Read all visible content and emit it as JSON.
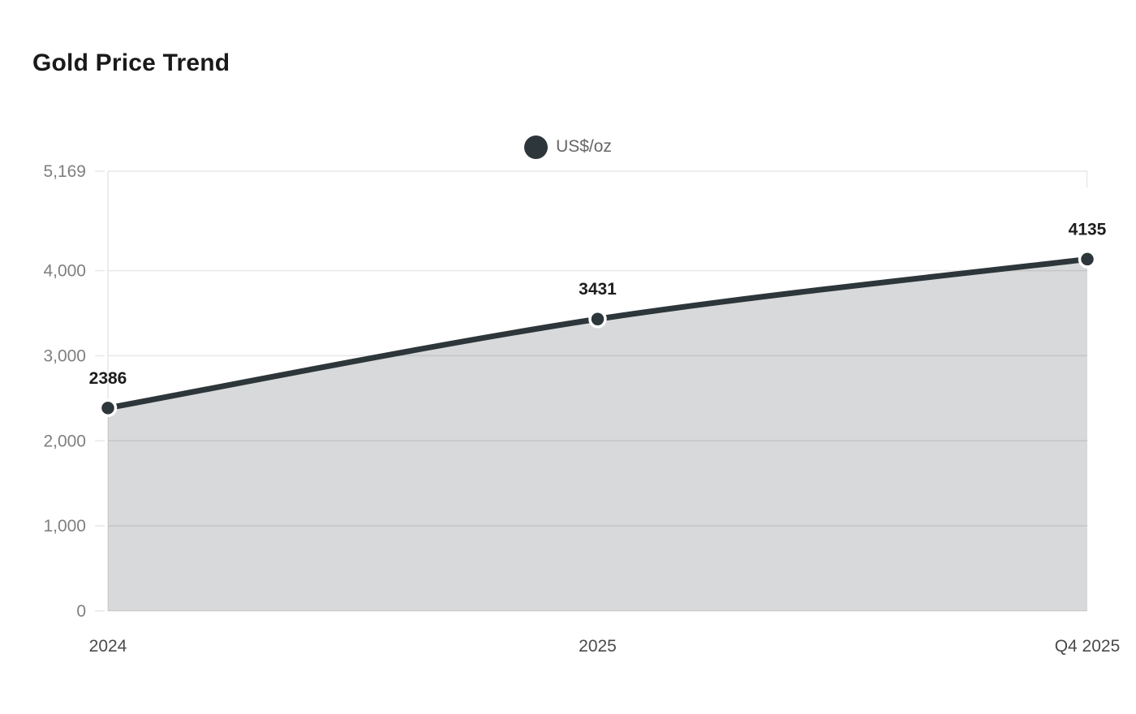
{
  "title": "Gold Price Trend",
  "legend": {
    "label": "US$/oz",
    "position": "top-center"
  },
  "colors": {
    "line": "#2d363a",
    "area_fill": "rgba(45,54,58,0.19)",
    "grid": "#e7e7e7",
    "y_tick_text": "#7f7f7f",
    "x_tick_text": "#4a4a4a",
    "point_label_text": "#1d1d1d",
    "title_text": "#1a1a1a",
    "legend_text": "#666666",
    "marker_ring": "#ffffff",
    "background": "#ffffff"
  },
  "chart_data": {
    "type": "area",
    "title": "Gold Price Trend",
    "categories": [
      "2024",
      "2025",
      "Q4 2025"
    ],
    "series": [
      {
        "name": "US$/oz",
        "values": [
          2386,
          3431,
          4135
        ]
      }
    ],
    "point_labels": [
      "2386",
      "3431",
      "4135"
    ],
    "xlabel": "",
    "ylabel": "",
    "ylim": [
      0,
      5169
    ],
    "y_ticks": {
      "values": [
        0,
        1000,
        2000,
        3000,
        4000,
        5169
      ],
      "labels": [
        "0",
        "1,000",
        "2,000",
        "3,000",
        "4,000",
        "5,169"
      ]
    },
    "grid": "horizontal",
    "smooth": true,
    "legend_position": "top-center"
  }
}
